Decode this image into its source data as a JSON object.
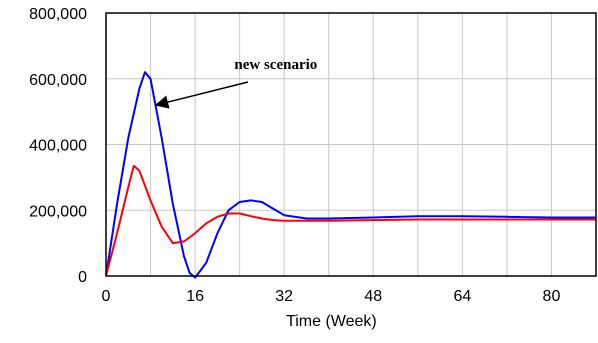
{
  "chart_data": {
    "type": "line",
    "xlabel": "Time (Week)",
    "ylabel": "",
    "xlim": [
      0,
      88
    ],
    "ylim": [
      0,
      800000
    ],
    "x_ticks": [
      0,
      16,
      32,
      48,
      64,
      80
    ],
    "x_tick_labels": [
      "0",
      "16",
      "32",
      "48",
      "64",
      "80"
    ],
    "y_ticks": [
      0,
      200000,
      400000,
      600000,
      800000
    ],
    "y_tick_labels": [
      "0",
      "200,000",
      "400,000",
      "600,000",
      "800,000"
    ],
    "x_grid": [
      0,
      8,
      16,
      24,
      32,
      40,
      48,
      56,
      64,
      72,
      80,
      88
    ],
    "y_grid": [
      0,
      200000,
      400000,
      600000,
      800000
    ],
    "grid": true,
    "series": [
      {
        "color": "#0000ff",
        "points": [
          [
            0,
            0
          ],
          [
            2,
            220000
          ],
          [
            4,
            420000
          ],
          [
            6,
            570000
          ],
          [
            7,
            620000
          ],
          [
            8,
            600000
          ],
          [
            10,
            420000
          ],
          [
            12,
            220000
          ],
          [
            14,
            60000
          ],
          [
            15,
            10000
          ],
          [
            16,
            -5000
          ],
          [
            18,
            40000
          ],
          [
            20,
            130000
          ],
          [
            22,
            200000
          ],
          [
            24,
            225000
          ],
          [
            26,
            230000
          ],
          [
            28,
            225000
          ],
          [
            30,
            205000
          ],
          [
            32,
            185000
          ],
          [
            36,
            175000
          ],
          [
            40,
            175000
          ],
          [
            48,
            178000
          ],
          [
            56,
            182000
          ],
          [
            64,
            182000
          ],
          [
            72,
            180000
          ],
          [
            80,
            178000
          ],
          [
            88,
            178000
          ]
        ]
      },
      {
        "color": "#ff0000",
        "points": [
          [
            0,
            0
          ],
          [
            2,
            130000
          ],
          [
            4,
            270000
          ],
          [
            5,
            335000
          ],
          [
            6,
            320000
          ],
          [
            8,
            230000
          ],
          [
            10,
            150000
          ],
          [
            12,
            100000
          ],
          [
            14,
            105000
          ],
          [
            16,
            130000
          ],
          [
            18,
            160000
          ],
          [
            20,
            180000
          ],
          [
            22,
            190000
          ],
          [
            24,
            190000
          ],
          [
            26,
            182000
          ],
          [
            28,
            175000
          ],
          [
            30,
            170000
          ],
          [
            32,
            168000
          ],
          [
            40,
            168000
          ],
          [
            48,
            170000
          ],
          [
            56,
            172000
          ],
          [
            64,
            172000
          ],
          [
            72,
            172000
          ],
          [
            80,
            172000
          ],
          [
            88,
            172000
          ]
        ]
      }
    ],
    "annotations": [
      {
        "text": "new scenario",
        "points_to": [
          9,
          520000
        ]
      }
    ]
  }
}
